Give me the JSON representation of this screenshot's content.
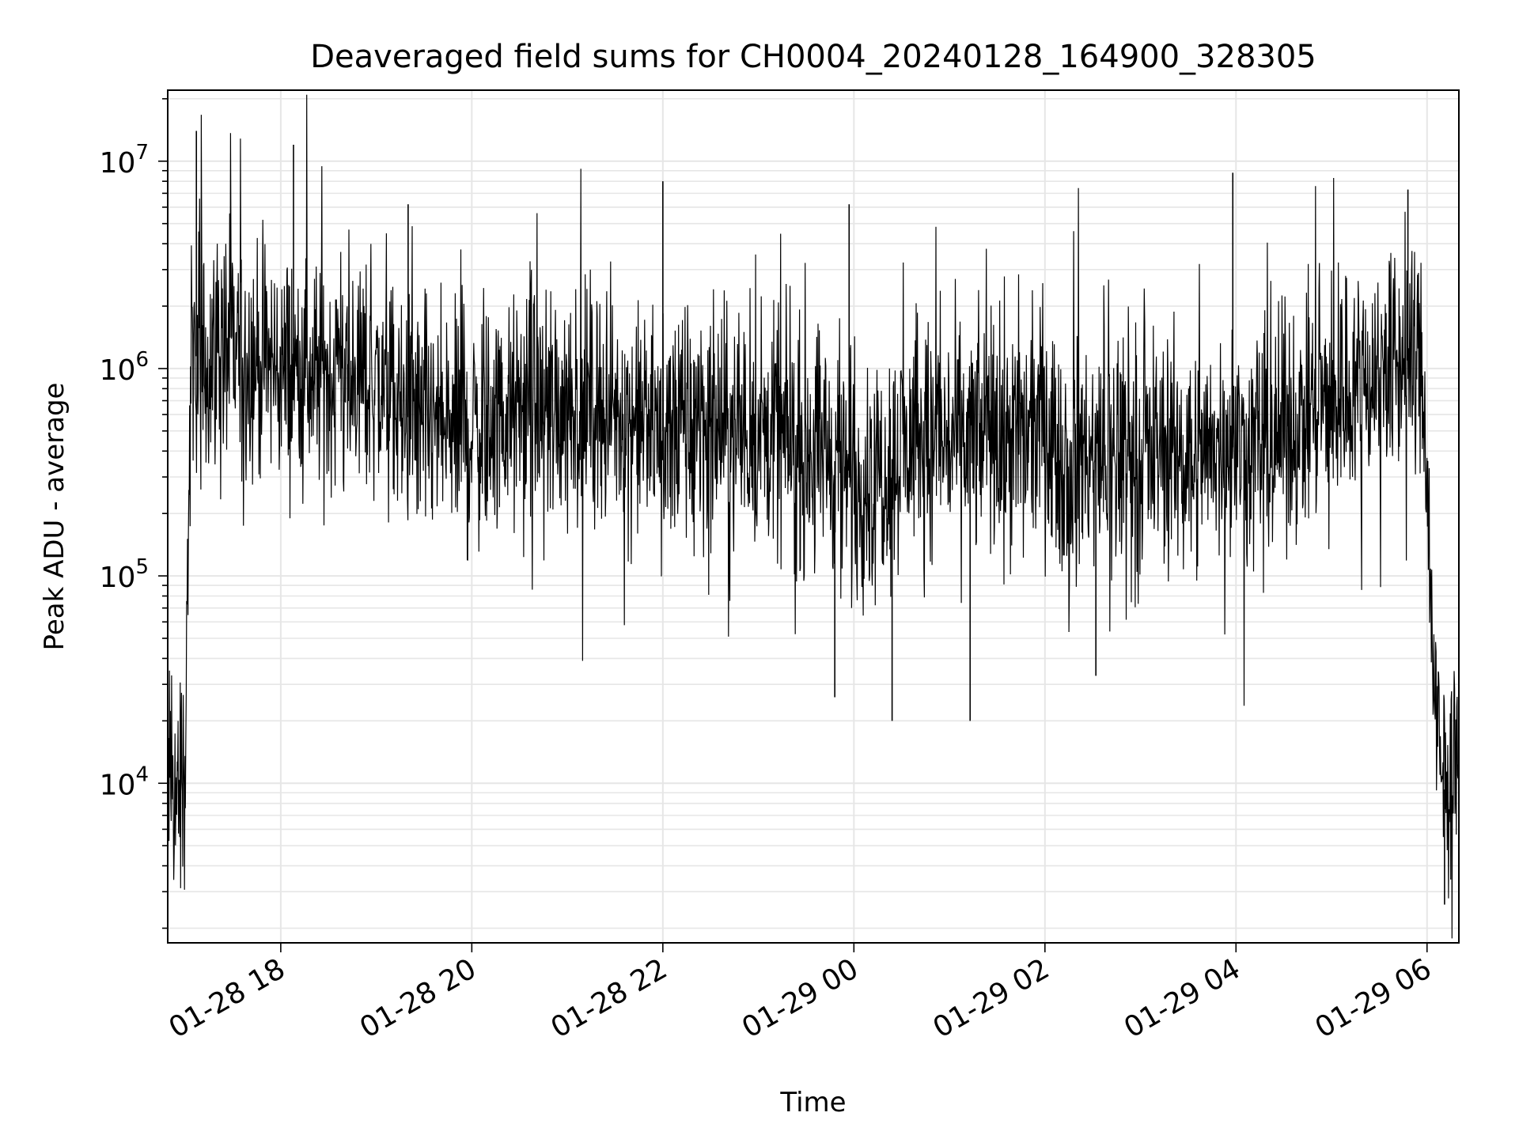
{
  "chart_data": {
    "type": "line",
    "title": "Deaveraged field sums for CH0004_20240128_164900_328305",
    "xlabel": "Time",
    "ylabel": "Peak ADU - average",
    "x_scale": "time",
    "y_scale": "log",
    "xlim": [
      "2024-01-28 16:49",
      "2024-01-29 06:20"
    ],
    "ylim": [
      1700,
      22000000
    ],
    "x_ticks": [
      {
        "value": "2024-01-28 18:00",
        "label": "01-28 18"
      },
      {
        "value": "2024-01-28 20:00",
        "label": "01-28 20"
      },
      {
        "value": "2024-01-28 22:00",
        "label": "01-28 22"
      },
      {
        "value": "2024-01-29 00:00",
        "label": "01-29 00"
      },
      {
        "value": "2024-01-29 02:00",
        "label": "01-29 02"
      },
      {
        "value": "2024-01-29 04:00",
        "label": "01-29 04"
      },
      {
        "value": "2024-01-29 06:00",
        "label": "01-29 06"
      }
    ],
    "y_ticks": [
      {
        "value": 10000,
        "base": "10",
        "exp": "4"
      },
      {
        "value": 100000,
        "base": "10",
        "exp": "5"
      },
      {
        "value": 1000000,
        "base": "10",
        "exp": "6"
      },
      {
        "value": 10000000,
        "base": "10",
        "exp": "7"
      }
    ],
    "grid": true,
    "line_color": "#000000",
    "grid_color": "#e6e6e6",
    "series": [
      {
        "x": [
          "2024-01-28 16:49",
          "2024-01-28 16:55",
          "2024-01-28 17:00",
          "2024-01-28 17:02",
          "2024-01-28 17:04",
          "2024-01-28 17:06",
          "2024-01-28 17:10",
          "2024-01-28 17:15",
          "2024-01-28 17:20",
          "2024-01-28 17:30",
          "2024-01-28 17:45",
          "2024-01-28 18:00",
          "2024-01-28 18:15",
          "2024-01-28 18:30",
          "2024-01-28 18:45",
          "2024-01-28 19:00",
          "2024-01-28 19:15",
          "2024-01-28 19:30",
          "2024-01-28 19:45",
          "2024-01-28 20:00",
          "2024-01-28 20:15",
          "2024-01-28 20:30",
          "2024-01-28 20:45",
          "2024-01-28 21:00",
          "2024-01-28 21:15",
          "2024-01-28 21:30",
          "2024-01-28 21:45",
          "2024-01-28 22:00",
          "2024-01-28 22:15",
          "2024-01-28 22:30",
          "2024-01-28 22:45",
          "2024-01-28 23:00",
          "2024-01-28 23:15",
          "2024-01-28 23:30",
          "2024-01-28 23:45",
          "2024-01-29 00:00",
          "2024-01-29 00:15",
          "2024-01-29 00:30",
          "2024-01-29 00:45",
          "2024-01-29 01:00",
          "2024-01-29 01:15",
          "2024-01-29 01:30",
          "2024-01-29 01:45",
          "2024-01-29 02:00",
          "2024-01-29 02:15",
          "2024-01-29 02:30",
          "2024-01-29 02:45",
          "2024-01-29 03:00",
          "2024-01-29 03:15",
          "2024-01-29 03:30",
          "2024-01-29 03:45",
          "2024-01-29 04:00",
          "2024-01-29 04:15",
          "2024-01-29 04:30",
          "2024-01-29 04:45",
          "2024-01-29 05:00",
          "2024-01-29 05:15",
          "2024-01-29 05:30",
          "2024-01-29 05:45",
          "2024-01-29 05:55",
          "2024-01-29 06:00",
          "2024-01-29 06:02",
          "2024-01-29 06:05",
          "2024-01-29 06:10",
          "2024-01-29 06:20"
        ],
        "y": [
          10000,
          9000,
          12000,
          200000,
          1000000,
          1200000,
          1000000,
          1100000,
          1300000,
          1200000,
          1100000,
          1000000,
          950000,
          900000,
          950000,
          850000,
          600000,
          550000,
          500000,
          500000,
          550000,
          600000,
          650000,
          700000,
          700000,
          600000,
          550000,
          500000,
          520000,
          550000,
          500000,
          480000,
          450000,
          420000,
          380000,
          280000,
          320000,
          400000,
          450000,
          450000,
          450000,
          500000,
          480000,
          450000,
          380000,
          350000,
          380000,
          400000,
          420000,
          380000,
          400000,
          420000,
          450000,
          500000,
          600000,
          700000,
          900000,
          1000000,
          1100000,
          1200000,
          400000,
          100000,
          20000,
          9000,
          13000
        ]
      }
    ],
    "spikes": {
      "up": [
        {
          "x": "2024-01-28 17:07",
          "y": 14000000
        },
        {
          "x": "2024-01-28 18:08",
          "y": 12000000
        },
        {
          "x": "2024-01-28 19:20",
          "y": 6200000
        },
        {
          "x": "2024-01-28 22:00",
          "y": 8000000
        },
        {
          "x": "2024-01-28 23:57",
          "y": 6200000
        },
        {
          "x": "2024-01-29 03:58",
          "y": 8800000
        },
        {
          "x": "2024-01-29 05:48",
          "y": 7300000
        }
      ],
      "down": [
        {
          "x": "2024-01-28 23:48",
          "y": 26000
        },
        {
          "x": "2024-01-29 00:24",
          "y": 20000
        },
        {
          "x": "2024-01-29 01:13",
          "y": 20000
        },
        {
          "x": "2024-01-29 02:32",
          "y": 33000
        },
        {
          "x": "2024-01-29 06:11",
          "y": 2600
        }
      ]
    }
  }
}
